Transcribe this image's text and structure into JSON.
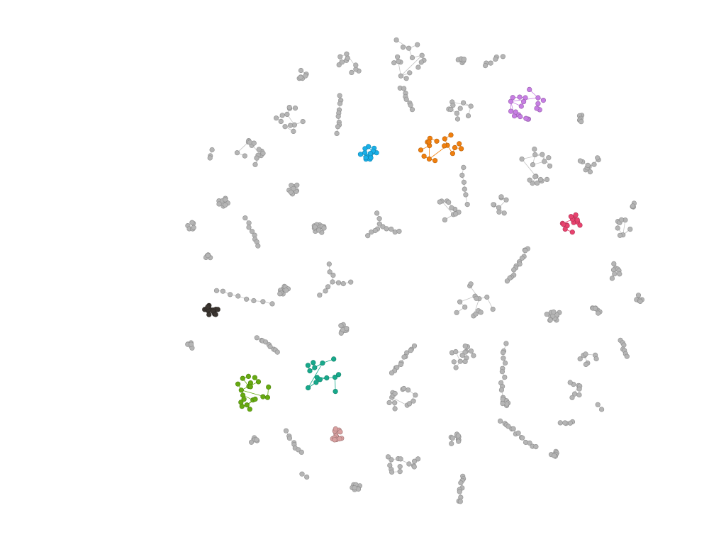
{
  "graph": {
    "type": "network",
    "layout": "force-directed",
    "background_color": "#ffffff",
    "default_node_color": "#b5b5b5",
    "default_node_stroke": "#8e8e8e",
    "default_edge_color": "#c4c4c4",
    "highlight_colors": {
      "blue": "#1ab0e8",
      "orange": "#f07f0e",
      "purple": "#c77ee3",
      "pink": "#e8436f",
      "dark": "#3b3530",
      "green": "#66aa11",
      "teal": "#17a98b",
      "rose": "#d8a0a0"
    },
    "highlighted_cluster_count": 8,
    "gray_cluster_count": 64
  }
}
